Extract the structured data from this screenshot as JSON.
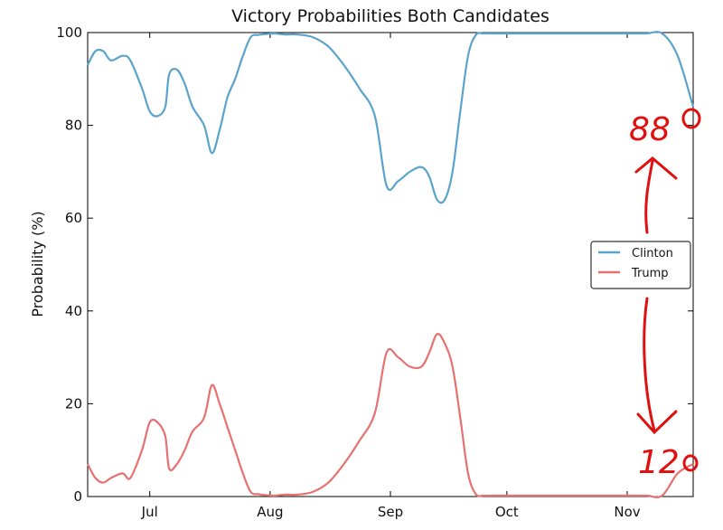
{
  "chart_data": {
    "type": "line",
    "title": "Victory Probabilities Both Candidates",
    "xlabel": "",
    "ylabel": "Probability (%)",
    "ylim": [
      0,
      100
    ],
    "yticks": [
      "0",
      "20",
      "40",
      "60",
      "80",
      "100"
    ],
    "xticks": [
      "Jul",
      "Aug",
      "Sep",
      "Oct",
      "Nov"
    ],
    "grid": false,
    "legend_position": "center-right",
    "x_units": "days since Jun 1 (Jul 1 = 30)",
    "x": [
      14,
      16,
      18,
      20,
      23,
      25,
      28,
      30,
      32,
      34,
      35,
      37,
      39,
      41,
      44,
      46,
      48,
      50,
      52,
      54,
      56,
      58,
      60,
      62,
      65,
      68,
      72,
      76,
      80,
      84,
      88,
      91,
      94,
      97,
      100,
      102,
      104,
      106,
      108,
      110,
      112,
      114,
      116,
      118,
      119,
      120,
      122,
      124,
      126,
      128,
      130,
      132,
      134,
      136,
      138,
      140,
      142,
      144,
      147,
      150,
      154,
      158,
      162,
      166,
      170
    ],
    "series": [
      {
        "name": "Clinton",
        "color": "#5aa4cc",
        "values": [
          93,
          96,
          96,
          94,
          95,
          94,
          88,
          83,
          82,
          84,
          91,
          92,
          89,
          84,
          80,
          74,
          79,
          86,
          90,
          95,
          99,
          99.5,
          99.7,
          99.8,
          99.6,
          99.6,
          99,
          97,
          93,
          88,
          82,
          67,
          68,
          70,
          71,
          69,
          64,
          64,
          70,
          83,
          95,
          99.5,
          99.8,
          99.8,
          99.8,
          99.8,
          99.8,
          99.8,
          99.8,
          99.8,
          99.8,
          99.8,
          99.8,
          99.8,
          99.8,
          99.8,
          99.8,
          99.8,
          99.8,
          99.8,
          99.8,
          99.8,
          99.8,
          95,
          84
        ]
      },
      {
        "name": "Trump",
        "color": "#e87070",
        "values": [
          7,
          4,
          3,
          4,
          5,
          4,
          10,
          16,
          16,
          13,
          6,
          7,
          10,
          14,
          17,
          24,
          20,
          15,
          10,
          5,
          1,
          0.5,
          0.3,
          0.2,
          0.4,
          0.4,
          1,
          3,
          7,
          12,
          18,
          31,
          30,
          28,
          28,
          31,
          35,
          33,
          28,
          17,
          5,
          0.5,
          0.2,
          0.2,
          0.2,
          0.2,
          0.2,
          0.2,
          0.2,
          0.2,
          0.2,
          0.2,
          0.2,
          0.2,
          0.2,
          0.2,
          0.2,
          0.2,
          0.2,
          0.2,
          0.2,
          0.2,
          0.2,
          5,
          7
        ]
      }
    ],
    "annotations": [
      "88",
      "12"
    ]
  },
  "colors": {
    "handwriting": "#e01010"
  }
}
